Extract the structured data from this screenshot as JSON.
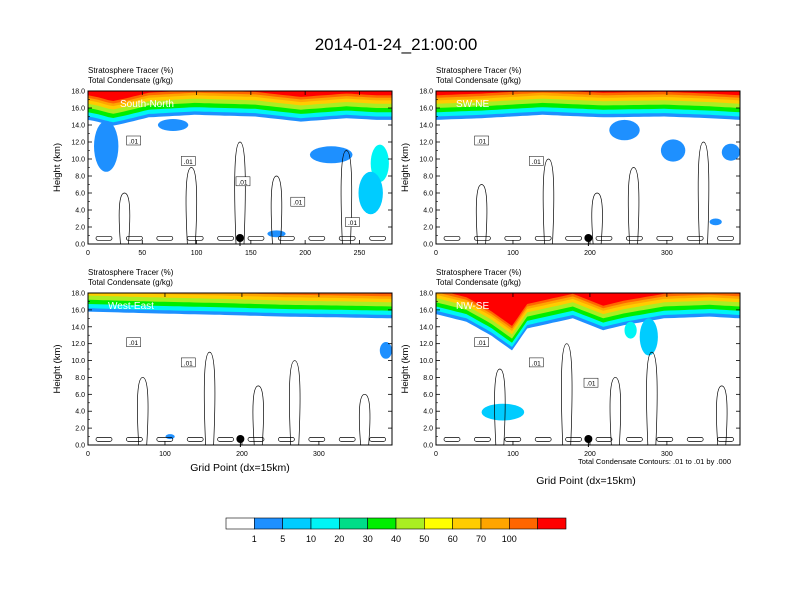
{
  "figure": {
    "title": "2014-01-24_21:00:00",
    "footnote": "Total Condensate Contours: .01 to .01 by .000",
    "xlabel": "Grid Point (dx=15km)",
    "ylabel": "Height (km)"
  },
  "colorbar": {
    "ticks": [
      "1",
      "5",
      "10",
      "20",
      "30",
      "40",
      "50",
      "60",
      "70",
      "100"
    ],
    "colors": [
      "#ffffff",
      "#1e90ff",
      "#00ccff",
      "#00f5f5",
      "#00dd88",
      "#00ee00",
      "#aaee22",
      "#ffff00",
      "#ffcc00",
      "#ffa500",
      "#ff6600",
      "#ff0000"
    ]
  },
  "chart_data": [
    {
      "type": "heatmap",
      "title": "South-North",
      "header_line1": "Stratosphere Tracer   (%)",
      "header_line2": "Total Condensate   (g/kg)",
      "xticks": [
        "0",
        "50",
        "100",
        "150",
        "200",
        "250"
      ],
      "xlim": [
        0,
        280
      ],
      "yticks": [
        "0.0",
        "2.0",
        "4.0",
        "6.0",
        "8.0",
        "10.0",
        "12.0",
        "14.0",
        "16.0",
        "18.0"
      ],
      "ylim": [
        0,
        18
      ],
      "contour_labels": [
        ".01",
        ".01",
        ".01",
        ".01",
        ".01"
      ],
      "marker_x": 140
    },
    {
      "type": "heatmap",
      "title": "SW-NE",
      "header_line1": "Stratosphere Tracer   (%)",
      "header_line2": "Total Condensate   (g/kg)",
      "xticks": [
        "0",
        "100",
        "200",
        "300"
      ],
      "xlim": [
        0,
        395
      ],
      "yticks": [
        "0.0",
        "2.0",
        "4.0",
        "6.0",
        "8.0",
        "10.0",
        "12.0",
        "14.0",
        "16.0",
        "18.0"
      ],
      "ylim": [
        0,
        18
      ],
      "contour_labels": [
        ".01",
        ".01"
      ],
      "marker_x": 198
    },
    {
      "type": "heatmap",
      "title": "West-East",
      "header_line1": "Stratosphere Tracer   (%)",
      "header_line2": "Total Condensate   (g/kg)",
      "xticks": [
        "0",
        "100",
        "200",
        "300"
      ],
      "xlim": [
        0,
        395
      ],
      "yticks": [
        "0.0",
        "2.0",
        "4.0",
        "6.0",
        "8.0",
        "10.0",
        "12.0",
        "14.0",
        "16.0",
        "18.0"
      ],
      "ylim": [
        0,
        18
      ],
      "contour_labels": [
        ".01",
        ".01"
      ],
      "marker_x": 198
    },
    {
      "type": "heatmap",
      "title": "NW-SE",
      "header_line1": "Stratosphere Tracer   (%)",
      "header_line2": "Total Condensate   (g/kg)",
      "xticks": [
        "0",
        "100",
        "200",
        "300"
      ],
      "xlim": [
        0,
        395
      ],
      "yticks": [
        "0.0",
        "2.0",
        "4.0",
        "6.0",
        "8.0",
        "10.0",
        "12.0",
        "14.0",
        "16.0",
        "18.0"
      ],
      "ylim": [
        0,
        18
      ],
      "contour_labels": [
        ".01",
        ".01",
        ".01"
      ],
      "marker_x": 198
    }
  ]
}
